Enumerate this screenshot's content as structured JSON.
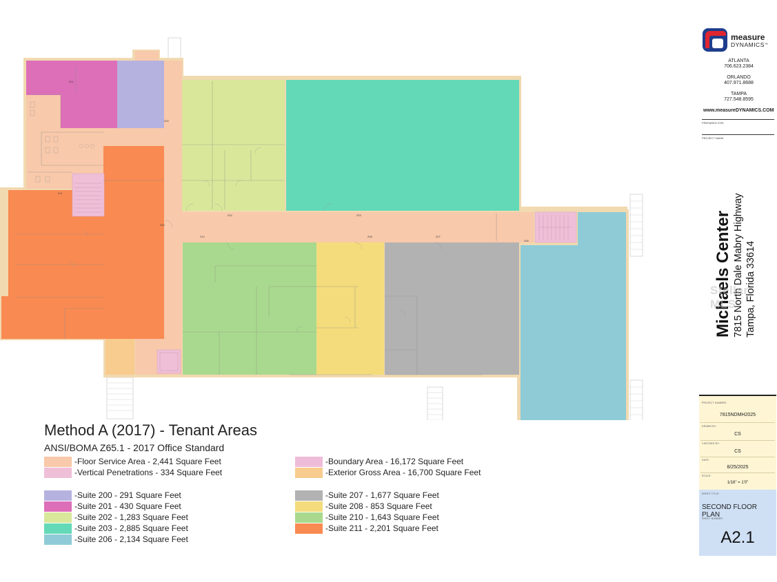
{
  "legend": {
    "title": "Method A (2017) - Tenant Areas",
    "subtitle": "ANSI/BOMA Z65.1 - 2017 Office Standard",
    "items": [
      {
        "key": "floor_service",
        "label": "-Floor Service Area  - 2,441 Square Feet",
        "color": "#f8c9aa"
      },
      {
        "key": "vertical",
        "label": "-Vertical Penetrations  - 334 Square Feet",
        "color": "#efbfd8"
      },
      {
        "key": "boundary",
        "label": "-Boundary Area  - 16,172 Square Feet",
        "color": "#eebcd8"
      },
      {
        "key": "exterior",
        "label": "-Exterior Gross Area  - 16,700 Square Feet",
        "color": "#f8cb8e"
      },
      {
        "key": "s200",
        "label": "-Suite 200 - 291 Square Feet",
        "color": "#b6b2e0"
      },
      {
        "key": "s201",
        "label": "-Suite 201 - 430 Square Feet",
        "color": "#dd6fb9"
      },
      {
        "key": "s202",
        "label": "-Suite 202 - 1,283 Square Feet",
        "color": "#d9e79a"
      },
      {
        "key": "s203",
        "label": "-Suite 203 - 2,885 Square Feet",
        "color": "#63d9b7"
      },
      {
        "key": "s206",
        "label": "-Suite 206 - 2,134 Square Feet",
        "color": "#8ecbd7"
      },
      {
        "key": "s207",
        "label": "-Suite 207 - 1,677 Square Feet",
        "color": "#b2b2b2"
      },
      {
        "key": "s208",
        "label": "-Suite 208 - 853 Square Feet",
        "color": "#f4dc7c"
      },
      {
        "key": "s210",
        "label": "-Suite 210 - 1,643 Square Feet",
        "color": "#a9d98e"
      },
      {
        "key": "s211",
        "label": "-Suite 211 - 2,201 Square Feet",
        "color": "#f98a52"
      }
    ]
  },
  "colors": {
    "wall": "#f1d9b0",
    "corridor": "#f8c9aa",
    "stair_lines": "#cccccc",
    "logo_red": "#e0252f",
    "logo_blue": "#1f3d8c"
  },
  "plan": {
    "room_numbers": [
      "200",
      "201",
      "202",
      "203",
      "204",
      "206",
      "207",
      "208",
      "210",
      "211"
    ]
  },
  "titleblock": {
    "logo_word_1": "measure",
    "logo_word_2": "DYNAMICS",
    "logo_tm": "™",
    "offices": [
      {
        "city": "ATLANTA",
        "phone": "706.623.2384"
      },
      {
        "city": "ORLANDO",
        "phone": "407.971.8688"
      },
      {
        "city": "TAMPA",
        "phone": "727.548.8595"
      }
    ],
    "website": "www.measureDYNAMICS.COM",
    "prepared_for_label": "PREPARED FOR:",
    "project_name_label": "PROJECT NAME:",
    "project_name": "Michaels Center",
    "address_line1": "7815 North Dale Mabry Highway",
    "address_line2": "Tampa, Florida 33614",
    "watermark": "Stellar MLS",
    "project_number_label": "PROJECT NUMBER:",
    "project_number": "7815NDMH2025",
    "drawn_by_label": "DRAWN BY:",
    "drawn_by": "CS",
    "checked_by_label": "CHECKED BY:",
    "checked_by": "CS",
    "date_label": "DATE:",
    "date": "8/25/2025",
    "scale_label": "SCALE:",
    "scale": "1/16\" = 1'0\"",
    "sheet_title_label": "SHEET TITLE:",
    "sheet_title": "SECOND FLOOR PLAN",
    "sheet_number_label": "SHEET NUMBER:",
    "sheet_number": "A2.1"
  }
}
